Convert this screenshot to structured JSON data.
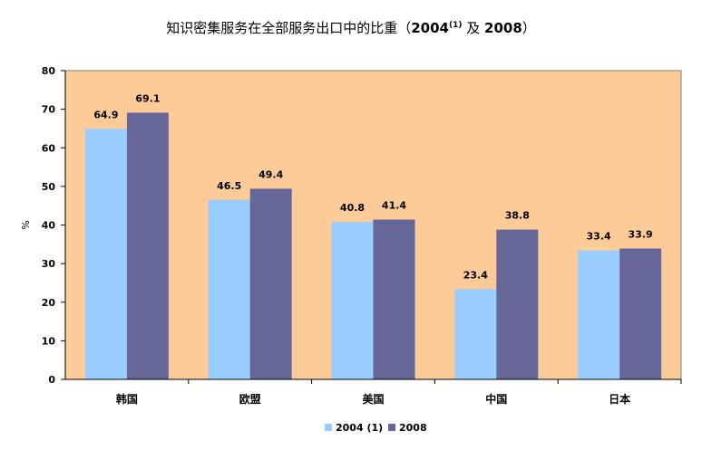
{
  "title": {
    "prefix": "知识密集服务在全部服务出口中的比重（",
    "year1": "2004",
    "note": "(1)",
    "middle": " 及 ",
    "year2": "2008",
    "suffix": "）"
  },
  "colors": {
    "plot_background": "#FCCB98",
    "series_2004": "#99CCFF",
    "series_2008": "#666699",
    "axis": "#000000"
  },
  "chart_data": {
    "type": "bar",
    "title": "知识密集服务在全部服务出口中的比重（2004 (1) 及 2008）",
    "categories": [
      "韩国",
      "欧盟",
      "美国",
      "中国",
      "日本"
    ],
    "series": [
      {
        "name": "2004 (1)",
        "values": [
          64.9,
          46.5,
          40.8,
          23.4,
          33.4
        ]
      },
      {
        "name": "2008",
        "values": [
          69.1,
          49.4,
          41.4,
          38.8,
          33.9
        ]
      }
    ],
    "xlabel": "",
    "ylabel": "%",
    "ylim": [
      0,
      80
    ],
    "yticks": [
      0,
      10,
      20,
      30,
      40,
      50,
      60,
      70,
      80
    ],
    "grid": false,
    "legend_position": "bottom"
  }
}
